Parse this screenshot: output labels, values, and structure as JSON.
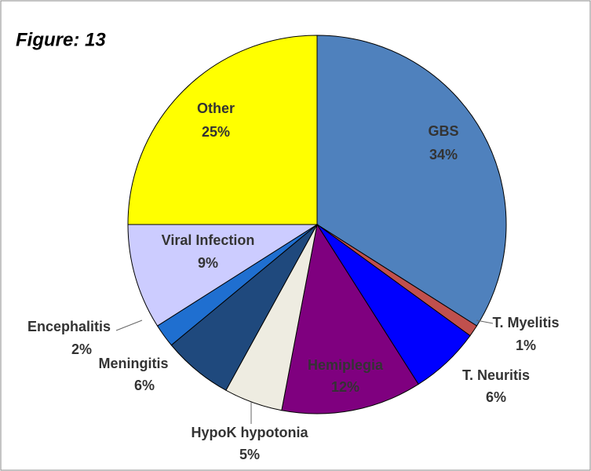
{
  "chart_data": {
    "type": "pie",
    "title": "Figure: 13",
    "categories": [
      "GBS",
      "T. Myelitis",
      "T. Neuritis",
      "Hemiplegia",
      "HypoK hypotonia",
      "Meningitis",
      "Encephalitis",
      "Viral Infection",
      "Other"
    ],
    "values": [
      34,
      1,
      6,
      12,
      5,
      6,
      2,
      9,
      25
    ],
    "value_labels": [
      "34%",
      "1%",
      "6%",
      "12%",
      "5%",
      "6%",
      "2%",
      "9%",
      "25%"
    ],
    "colors": [
      "#4f81bd",
      "#c0504d",
      "#0000ff",
      "#7f007f",
      "#eeece1",
      "#1f497d",
      "#1f6fd0",
      "#ccccff",
      "#ffff00"
    ]
  }
}
